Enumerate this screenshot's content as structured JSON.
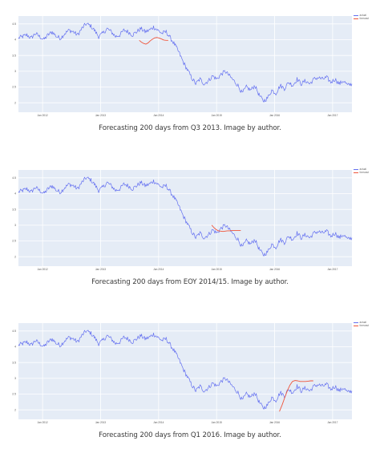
{
  "chart_data": [
    {
      "type": "line",
      "caption": "Forecasting 200 days from Q3 2013. Image by author.",
      "legend": [
        "actual",
        "forecast"
      ],
      "legend_position": "top-right",
      "grid": true,
      "x_ticks": [
        "Jan 2012",
        "Jan 2013",
        "Jan 2014",
        "Jan 2015",
        "Jan 2016",
        "Jan 2017"
      ],
      "y_ticks": [
        "4.5",
        "4",
        "3.5",
        "3",
        "2.5",
        "2"
      ],
      "ylim": [
        1.7,
        4.75
      ],
      "forecast_window": [
        "2013-09",
        "2014-03"
      ],
      "forecast": [
        3.98,
        3.92,
        3.88,
        3.86,
        3.9,
        3.97,
        4.02,
        4.06,
        4.07,
        4.05,
        4.02,
        3.99,
        3.98,
        3.98
      ]
    },
    {
      "type": "line",
      "caption": "Forecasting 200 days from EOY 2014/15. Image by author.",
      "legend": [
        "actual",
        "forecast"
      ],
      "legend_position": "top-right",
      "grid": true,
      "x_ticks": [
        "Jan 2012",
        "Jan 2013",
        "Jan 2014",
        "Jan 2015",
        "Jan 2016",
        "Jan 2017"
      ],
      "y_ticks": [
        "4.5",
        "4",
        "3.5",
        "3",
        "2.5",
        "2"
      ],
      "ylim": [
        1.7,
        4.75
      ],
      "forecast_window": [
        "2014-12",
        "2015-06"
      ],
      "forecast": [
        3.0,
        2.92,
        2.86,
        2.82,
        2.81,
        2.8,
        2.81,
        2.82,
        2.82,
        2.83,
        2.83,
        2.83,
        2.83,
        2.83
      ]
    },
    {
      "type": "line",
      "caption": "Forecasting 200 days from Q1 2016. Image by author.",
      "legend": [
        "actual",
        "forecast"
      ],
      "legend_position": "top-right",
      "grid": true,
      "x_ticks": [
        "Jan 2012",
        "Jan 2013",
        "Jan 2014",
        "Jan 2015",
        "Jan 2016",
        "Jan 2017"
      ],
      "y_ticks": [
        "4.5",
        "4",
        "3.5",
        "3",
        "2.5",
        "2"
      ],
      "ylim": [
        1.7,
        4.75
      ],
      "forecast_window": [
        "2016-02",
        "2016-09"
      ],
      "forecast": [
        1.95,
        2.15,
        2.38,
        2.6,
        2.78,
        2.9,
        2.93,
        2.92,
        2.9,
        2.9,
        2.9,
        2.91,
        2.92,
        2.92
      ]
    }
  ],
  "actual_series": {
    "name": "actual",
    "x_start": "2011-08",
    "x_end": "2017-05",
    "values": [
      4.05,
      4.1,
      4.15,
      4.05,
      4.2,
      4.1,
      4.0,
      4.15,
      4.25,
      4.1,
      4.05,
      4.2,
      4.3,
      4.25,
      4.15,
      4.35,
      4.5,
      4.45,
      4.3,
      4.1,
      4.2,
      4.35,
      4.25,
      4.1,
      4.15,
      4.3,
      4.25,
      4.15,
      4.25,
      4.35,
      4.25,
      4.3,
      4.4,
      4.3,
      4.2,
      4.25,
      4.05,
      3.85,
      3.6,
      3.3,
      3.05,
      2.8,
      2.6,
      2.75,
      2.6,
      2.7,
      2.85,
      2.75,
      2.9,
      3.0,
      2.85,
      2.7,
      2.55,
      2.3,
      2.5,
      2.4,
      2.55,
      2.25,
      2.05,
      2.15,
      2.4,
      2.3,
      2.55,
      2.45,
      2.65,
      2.55,
      2.75,
      2.6,
      2.7,
      2.6,
      2.75,
      2.8,
      2.75,
      2.8,
      2.65,
      2.75,
      2.6,
      2.7,
      2.55,
      2.6
    ]
  }
}
